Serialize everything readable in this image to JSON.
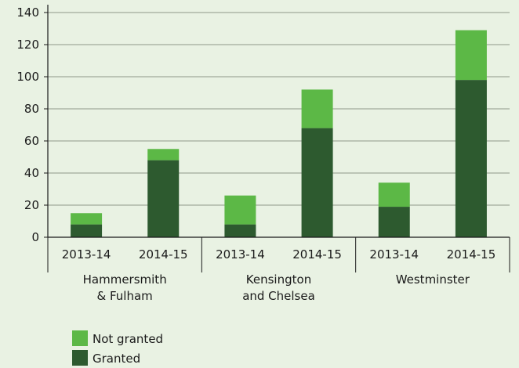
{
  "chart_data": {
    "type": "bar",
    "stacked": true,
    "categories": [
      "2013-14",
      "2014-15",
      "2013-14",
      "2014-15",
      "2013-14",
      "2014-15"
    ],
    "groups": [
      {
        "label_lines": [
          "Hammersmith",
          "& Fulham"
        ],
        "category_indices": [
          0,
          1
        ]
      },
      {
        "label_lines": [
          "Kensington",
          "and Chelsea"
        ],
        "category_indices": [
          2,
          3
        ]
      },
      {
        "label_lines": [
          "Westminster"
        ],
        "category_indices": [
          4,
          5
        ]
      }
    ],
    "series": [
      {
        "name": "Granted",
        "color": "#2d5a2f",
        "values": [
          8,
          48,
          8,
          68,
          19,
          98
        ]
      },
      {
        "name": "Not granted",
        "color": "#5cb846",
        "values": [
          7,
          7,
          18,
          24,
          15,
          31
        ]
      }
    ],
    "ylim": [
      0,
      140
    ],
    "yticks": [
      0,
      20,
      40,
      60,
      80,
      100,
      120,
      140
    ],
    "grid": true,
    "legend_position": "bottom-left",
    "legend_order": [
      "Not granted",
      "Granted"
    ],
    "xlabel": "",
    "ylabel": "",
    "title": ""
  }
}
